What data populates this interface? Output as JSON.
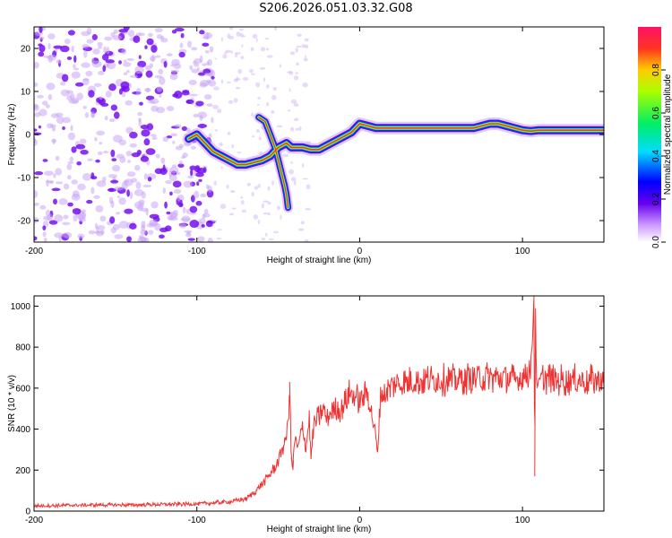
{
  "title": "S206.2026.051.03.32.G08",
  "chart_data": [
    {
      "type": "heatmap",
      "title": "S206.2026.051.03.32.G08",
      "xlabel": "Height of straight line (km)",
      "ylabel": "Frequency (Hz)",
      "xlim": [
        -200,
        150
      ],
      "ylim": [
        -25,
        25
      ],
      "xticks": [
        -200,
        -100,
        0,
        100
      ],
      "yticks": [
        -20,
        -10,
        0,
        10,
        20
      ],
      "colorbar": {
        "label": "Normalized spectral amplitude",
        "range": [
          0,
          1
        ],
        "ticks": [
          "0.0",
          "0.2",
          "0.4",
          "0.6",
          "0.8"
        ]
      },
      "ridge": {
        "x": [
          -105,
          -100,
          -95,
          -90,
          -85,
          -80,
          -75,
          -70,
          -65,
          -60,
          -55,
          -50,
          -45,
          -42,
          -40,
          -35,
          -30,
          -25,
          -20,
          -15,
          -10,
          -5,
          0,
          5,
          10,
          20,
          30,
          40,
          50,
          60,
          70,
          80,
          85,
          90,
          95,
          100,
          105,
          110,
          120,
          130,
          140,
          150
        ],
        "y": [
          -1,
          0,
          -2,
          -4,
          -5,
          -6,
          -7,
          -7,
          -6.5,
          -6,
          -5,
          -3,
          -2,
          -3,
          -3,
          -3,
          -3.5,
          -3.5,
          -2.5,
          -1.5,
          -0.5,
          0.5,
          2.5,
          2,
          1.5,
          1.5,
          1.5,
          1.5,
          1.5,
          1.5,
          1.5,
          2.5,
          2.5,
          2,
          1.5,
          1,
          0.8,
          1,
          1,
          1,
          1,
          1
        ]
      },
      "branch": {
        "x": [
          -62,
          -58,
          -55,
          -52,
          -50,
          -48,
          -46,
          -45,
          -44
        ],
        "y": [
          4,
          3,
          0,
          -3,
          -6,
          -9,
          -12,
          -14,
          -17
        ]
      }
    },
    {
      "type": "line",
      "xlabel": "Height of straight line (km)",
      "ylabel": "SNR (10 * v/v)",
      "xlim": [
        -200,
        150
      ],
      "ylim": [
        0,
        1050
      ],
      "xticks": [
        -200,
        -100,
        0,
        100
      ],
      "yticks": [
        0,
        200,
        400,
        600,
        800,
        1000
      ],
      "color": "#ee3333",
      "series": [
        {
          "name": "SNR",
          "x": [
            -200,
            -180,
            -160,
            -140,
            -120,
            -100,
            -80,
            -70,
            -65,
            -60,
            -55,
            -50,
            -48,
            -46,
            -44,
            -43,
            -42,
            -41,
            -40,
            -38,
            -35,
            -33,
            -31,
            -30,
            -28,
            -25,
            -22,
            -20,
            -18,
            -15,
            -12,
            -10,
            -8,
            -6,
            -4,
            -2,
            0,
            2,
            5,
            8,
            10,
            11,
            12,
            13,
            15,
            20,
            25,
            30,
            40,
            50,
            60,
            70,
            80,
            90,
            95,
            100,
            104,
            106,
            107,
            107.5,
            108,
            108.5,
            109,
            110,
            115,
            120,
            130,
            140,
            150
          ],
          "y": [
            25,
            28,
            30,
            30,
            33,
            35,
            45,
            60,
            90,
            130,
            180,
            240,
            300,
            330,
            420,
            630,
            260,
            200,
            360,
            300,
            420,
            300,
            460,
            250,
            430,
            460,
            500,
            440,
            480,
            500,
            490,
            520,
            540,
            580,
            560,
            560,
            530,
            560,
            580,
            450,
            360,
            250,
            480,
            580,
            560,
            620,
            620,
            630,
            640,
            640,
            640,
            650,
            650,
            650,
            640,
            650,
            680,
            800,
            1050,
            170,
            990,
            650,
            600,
            640,
            650,
            640,
            640,
            635,
            640
          ]
        }
      ]
    }
  ]
}
